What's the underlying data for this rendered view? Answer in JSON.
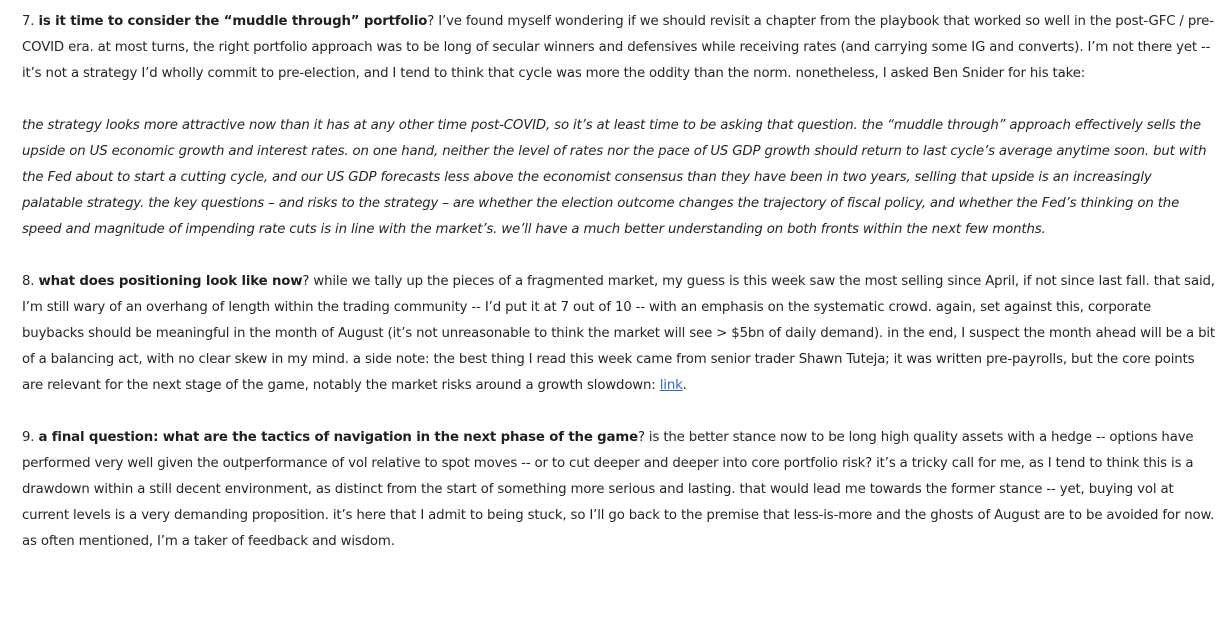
{
  "sections": [
    {
      "number": "7.",
      "heading": "is it time to consider the “muddle through” portfolio",
      "body": "?  I’ve found myself wondering if we should revisit a chapter from the playbook that worked so well in the post-GFC / pre-COVID era.   at most turns, the right portfolio approach was to be long of secular winners and defensives while receiving rates (and carrying some IG and converts).  I’m not there yet -- it’s not a strategy I’d wholly commit to pre-election, and I tend to think that cycle was more the oddity than the norm.  nonetheless, I asked Ben Snider for his take:"
    },
    {
      "quote": "the strategy looks more attractive now than it has at any other time post-COVID, so it’s at least time to be asking that question.  the “muddle through” approach effectively sells the upside on US economic growth and interest rates.  on one hand, neither the level of rates nor the pace of US GDP growth should return to last cycle’s average anytime soon.  but with the Fed about to start a cutting cycle, and our US GDP forecasts less above the economist consensus than they have been in two years, selling that upside is an increasingly palatable strategy.  the key questions – and risks to the strategy – are whether the election outcome changes the trajectory of fiscal policy, and whether the Fed’s thinking on the speed and magnitude of impending rate cuts is in line with the market’s.  we’ll have a much better understanding on both fronts within the next few months."
    },
    {
      "number": "8.",
      "heading": "what does positioning look like now",
      "body": "?  while we tally up the pieces of a fragmented market, my guess is this week saw the most selling since April, if not since last fall.  that said, I’m still wary of an overhang of length within the trading community -- I’d put it at 7 out of 10 -- with an emphasis on the systematic crowd.  again, set against this, corporate buybacks should be meaningful in the month of August (it’s not unreasonable to think the market will see > $5bn of daily demand).   in the end, I suspect the month ahead will be a bit of a balancing act, with no clear skew in my mind.  a side note: the best thing I read this week came from senior trader Shawn Tuteja; it was written pre-payrolls, but the core points are relevant for the next stage of the game, notably the market risks around a growth slowdown: ",
      "link_text": "link",
      "after_link": "."
    },
    {
      "number": "9.",
      "heading": "a final question: what are the tactics of navigation in the next phase of the game",
      "body": "?  is the better stance now to be long high quality assets with a hedge -- options have performed very well given the outperformance of vol relative to spot moves -- or to cut deeper and deeper into core portfolio risk?  it’s a tricky call for me, as I tend to think this is a drawdown within a still decent environment, as distinct from the start of something more serious and lasting.  that would lead me towards the former stance -- yet, buying vol at current levels is a very demanding proposition.  it’s here that I admit to being stuck, so I’ll go back to the premise that less-is-more and the ghosts of August are to be avoided for now.  as often mentioned, I’m a taker of feedback and wisdom."
    }
  ]
}
